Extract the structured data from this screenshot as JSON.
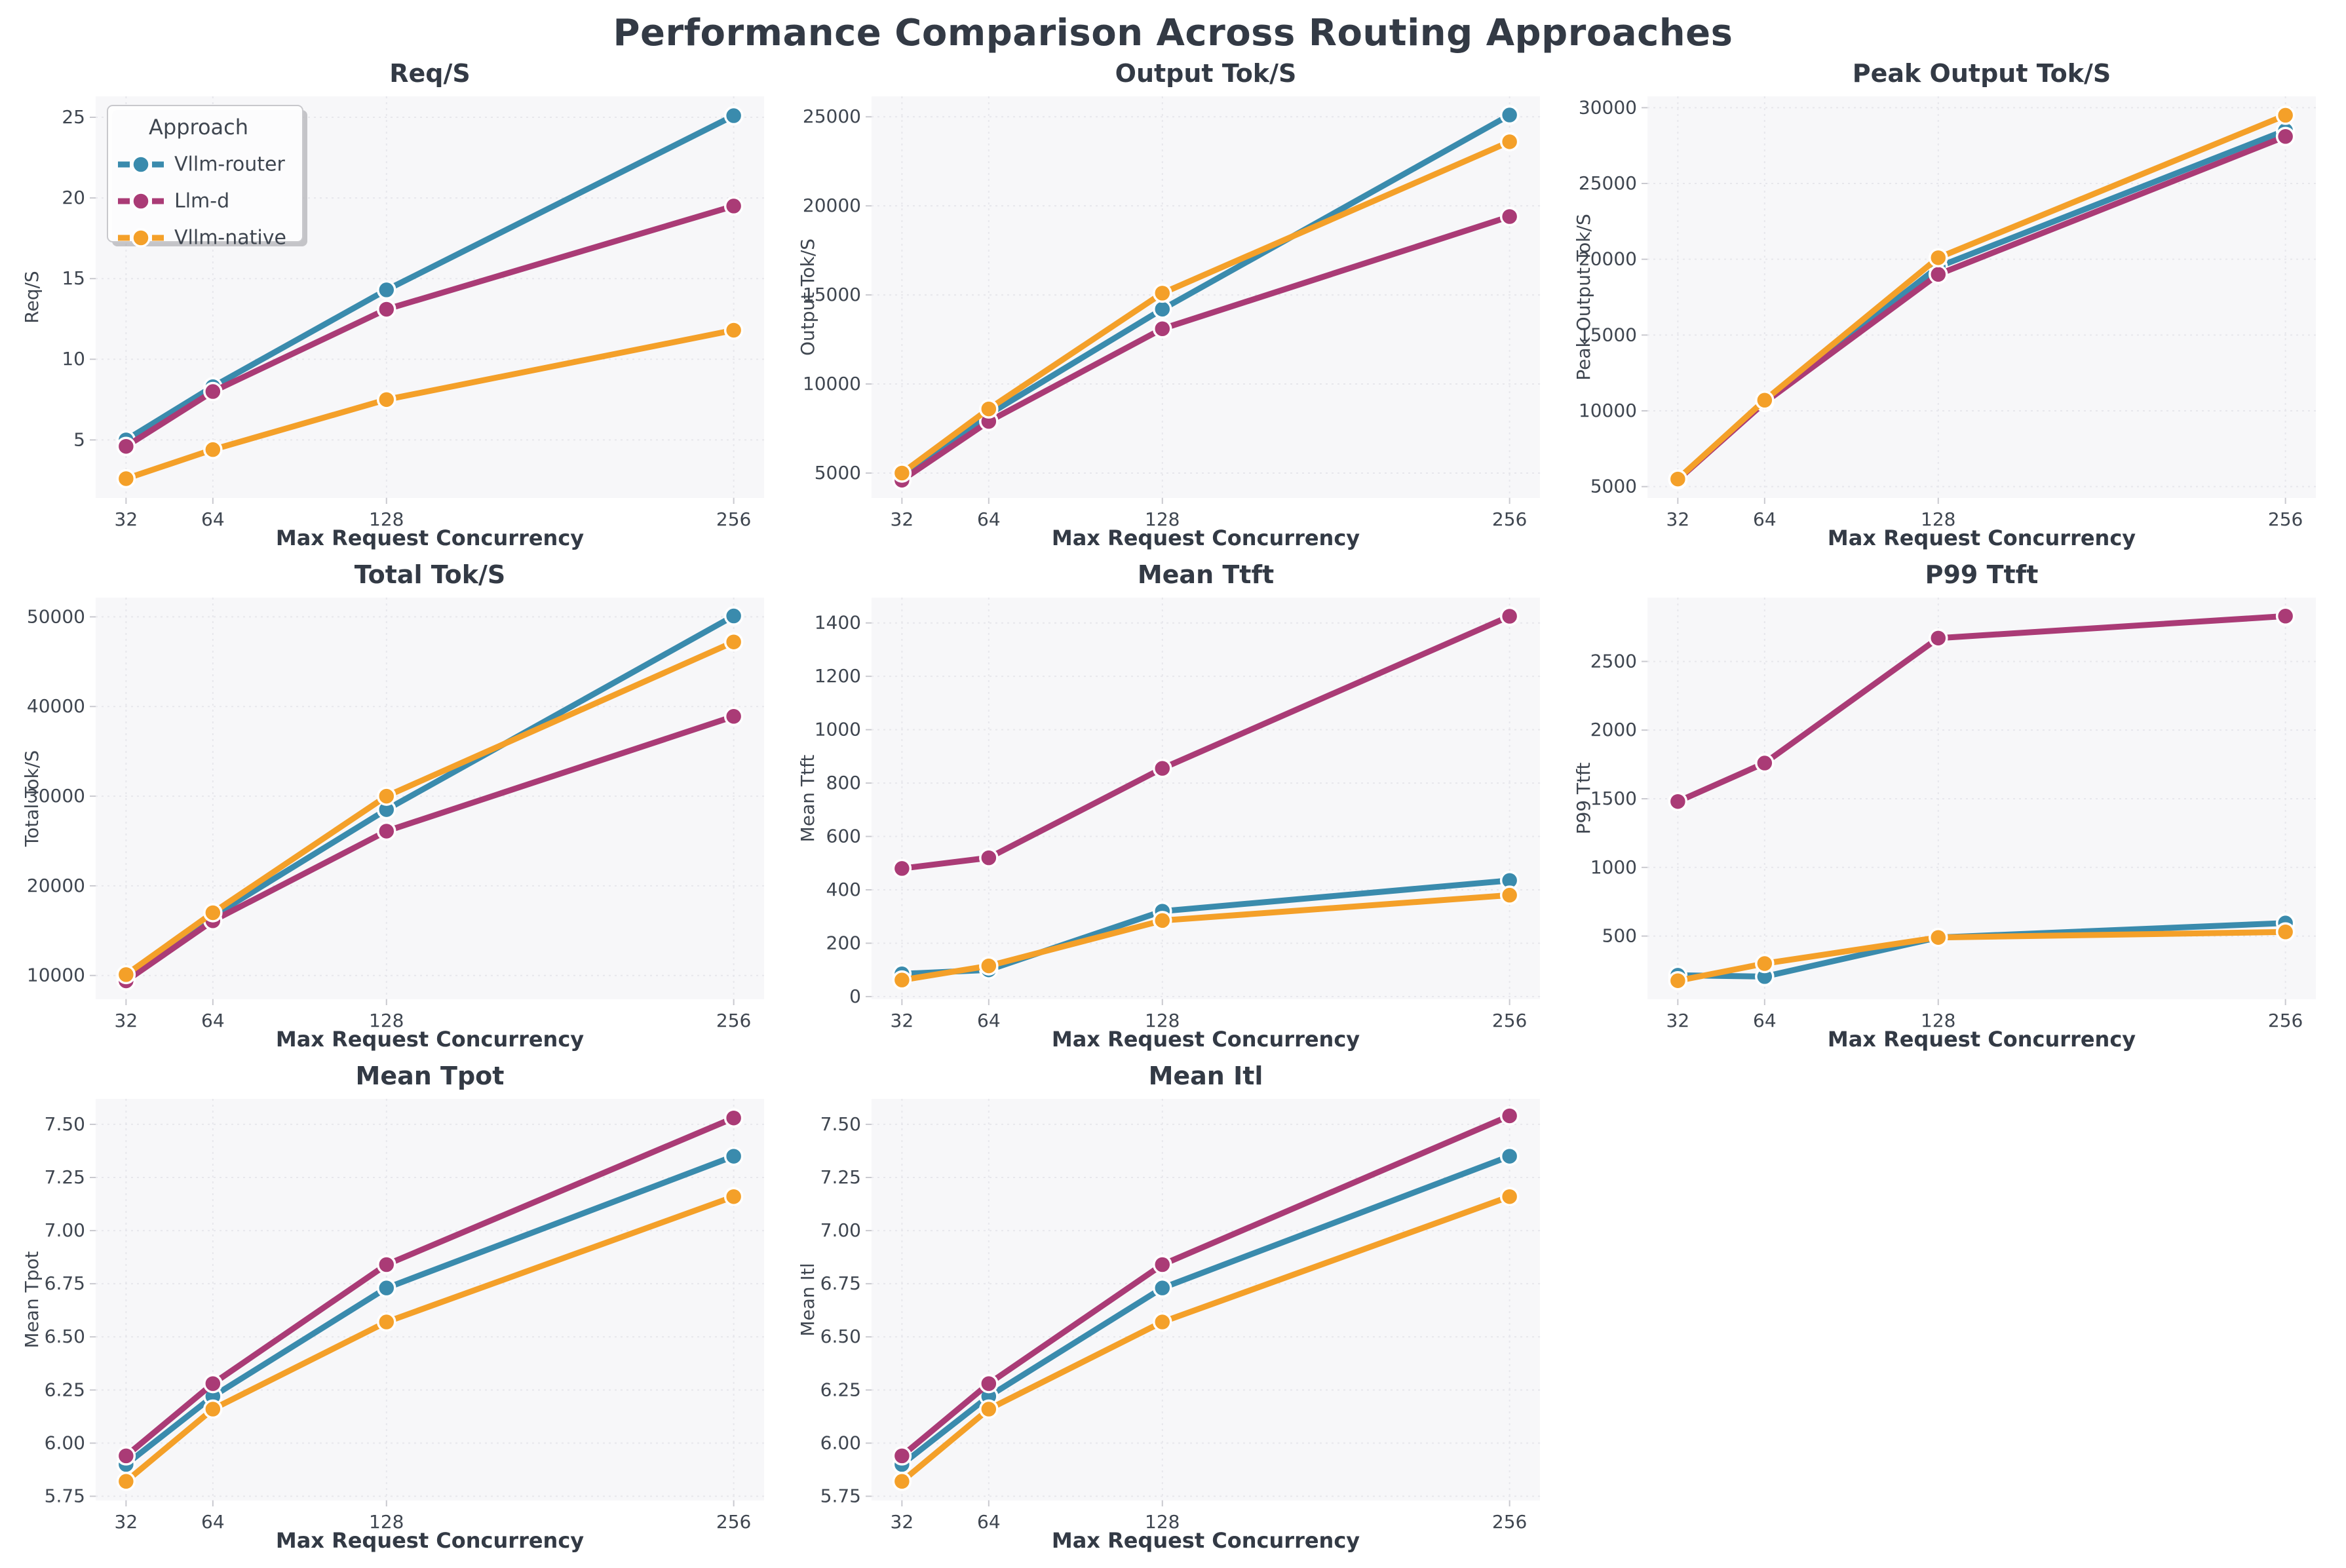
{
  "figure_title": "Performance Comparison Across Routing Approaches",
  "style": {
    "plot_bg": "#f7f7f9",
    "grid_color": "#e7e7ec",
    "tick_color": "#c9c9cf",
    "text_color": "#3f4650",
    "title_color": "#333a45",
    "legend_border": "#c8c8cc",
    "legend_bg": "#fefefe",
    "legend_shadow": "#9a9aa0"
  },
  "legend": {
    "title": "Approach",
    "entries": [
      {
        "name": "Vllm-router",
        "color": "#3a8bad"
      },
      {
        "name": "Llm-d",
        "color": "#aa3b76"
      },
      {
        "name": "Vllm-native",
        "color": "#f4a029"
      }
    ]
  },
  "shared_x": {
    "label": "Max Request Concurrency",
    "values": [
      32,
      64,
      128,
      256
    ],
    "tick_labels": [
      "32",
      "64",
      "128",
      "256"
    ],
    "xlim": [
      20.8,
      267.2
    ]
  },
  "chart_data": [
    {
      "id": "req-s",
      "type": "line",
      "title": "Req/S",
      "ylabel": "Req/S",
      "show_legend": true,
      "yticks": [
        5,
        10,
        15,
        20,
        25
      ],
      "ytick_labels": [
        "5",
        "10",
        "15",
        "20",
        "25"
      ],
      "ylim": [
        1.4,
        26.3
      ],
      "series": [
        {
          "name": "Vllm-router",
          "values": [
            5.0,
            8.3,
            14.3,
            25.1
          ]
        },
        {
          "name": "Llm-d",
          "values": [
            4.6,
            8.0,
            13.1,
            19.5
          ]
        },
        {
          "name": "Vllm-native",
          "values": [
            2.6,
            4.4,
            7.5,
            11.8
          ]
        }
      ]
    },
    {
      "id": "output-tok-s",
      "type": "line",
      "title": "Output Tok/S",
      "ylabel": "Output Tok/S",
      "show_legend": false,
      "yticks": [
        5000,
        10000,
        15000,
        20000,
        25000
      ],
      "ytick_labels": [
        "5000",
        "10000",
        "15000",
        "20000",
        "25000"
      ],
      "ylim": [
        3600,
        26150
      ],
      "series": [
        {
          "name": "Vllm-router",
          "values": [
            4950,
            8300,
            14200,
            25100
          ]
        },
        {
          "name": "Llm-d",
          "values": [
            4600,
            7900,
            13100,
            19400
          ]
        },
        {
          "name": "Vllm-native",
          "values": [
            5000,
            8600,
            15100,
            23600
          ]
        }
      ]
    },
    {
      "id": "peak-output-tok-s",
      "type": "line",
      "title": "Peak Output Tok/S",
      "ylabel": "Peak Output Tok/S",
      "show_legend": false,
      "yticks": [
        5000,
        10000,
        15000,
        20000,
        25000,
        30000
      ],
      "ytick_labels": [
        "5000",
        "10000",
        "15000",
        "20000",
        "25000",
        "30000"
      ],
      "ylim": [
        4250,
        30750
      ],
      "series": [
        {
          "name": "Vllm-router",
          "values": [
            5500,
            10600,
            19500,
            28500
          ]
        },
        {
          "name": "Llm-d",
          "values": [
            5450,
            10550,
            19000,
            28100
          ]
        },
        {
          "name": "Vllm-native",
          "values": [
            5500,
            10700,
            20100,
            29500
          ]
        }
      ]
    },
    {
      "id": "total-tok-s",
      "type": "line",
      "title": "Total Tok/S",
      "ylabel": "Total Tok/S",
      "show_legend": false,
      "yticks": [
        10000,
        20000,
        30000,
        40000,
        50000
      ],
      "ytick_labels": [
        "10000",
        "20000",
        "30000",
        "40000",
        "50000"
      ],
      "ylim": [
        7350,
        52150
      ],
      "series": [
        {
          "name": "Vllm-router",
          "values": [
            9900,
            16600,
            28500,
            50100
          ]
        },
        {
          "name": "Llm-d",
          "values": [
            9400,
            16100,
            26100,
            38900
          ]
        },
        {
          "name": "Vllm-native",
          "values": [
            10100,
            17000,
            30000,
            47200
          ]
        }
      ]
    },
    {
      "id": "mean-ttft",
      "type": "line",
      "title": "Mean Ttft",
      "ylabel": "Mean Ttft",
      "show_legend": false,
      "yticks": [
        0,
        200,
        400,
        600,
        800,
        1000,
        1200,
        1400
      ],
      "ytick_labels": [
        "0",
        "200",
        "400",
        "600",
        "800",
        "1000",
        "1200",
        "1400"
      ],
      "ylim": [
        -10,
        1495
      ],
      "series": [
        {
          "name": "Vllm-router",
          "values": [
            85,
            100,
            320,
            435
          ]
        },
        {
          "name": "Llm-d",
          "values": [
            480,
            520,
            855,
            1425
          ]
        },
        {
          "name": "Vllm-native",
          "values": [
            62,
            115,
            285,
            380
          ]
        }
      ]
    },
    {
      "id": "p99-ttft",
      "type": "line",
      "title": "P99 Ttft",
      "ylabel": "P99 Ttft",
      "show_legend": false,
      "yticks": [
        500,
        1000,
        1500,
        2000,
        2500
      ],
      "ytick_labels": [
        "500",
        "1000",
        "1500",
        "2000",
        "2500"
      ],
      "ylim": [
        40,
        2965
      ],
      "series": [
        {
          "name": "Vllm-router",
          "values": [
            215,
            205,
            490,
            595
          ]
        },
        {
          "name": "Llm-d",
          "values": [
            1480,
            1760,
            2670,
            2830
          ]
        },
        {
          "name": "Vllm-native",
          "values": [
            175,
            300,
            490,
            530
          ]
        }
      ]
    },
    {
      "id": "mean-tpot",
      "type": "line",
      "title": "Mean Tpot",
      "ylabel": "Mean Tpot",
      "show_legend": false,
      "yticks": [
        5.75,
        6.0,
        6.25,
        6.5,
        6.75,
        7.0,
        7.25,
        7.5
      ],
      "ytick_labels": [
        "5.75",
        "6.00",
        "6.25",
        "6.50",
        "6.75",
        "7.00",
        "7.25",
        "7.50"
      ],
      "ylim": [
        5.73,
        7.62
      ],
      "series": [
        {
          "name": "Vllm-router",
          "values": [
            5.9,
            6.22,
            6.73,
            7.35
          ]
        },
        {
          "name": "Llm-d",
          "values": [
            5.94,
            6.28,
            6.84,
            7.53
          ]
        },
        {
          "name": "Vllm-native",
          "values": [
            5.82,
            6.16,
            6.57,
            7.16
          ]
        }
      ]
    },
    {
      "id": "mean-itl",
      "type": "line",
      "title": "Mean Itl",
      "ylabel": "Mean Itl",
      "show_legend": false,
      "yticks": [
        5.75,
        6.0,
        6.25,
        6.5,
        6.75,
        7.0,
        7.25,
        7.5
      ],
      "ytick_labels": [
        "5.75",
        "6.00",
        "6.25",
        "6.50",
        "6.75",
        "7.00",
        "7.25",
        "7.50"
      ],
      "ylim": [
        5.73,
        7.62
      ],
      "series": [
        {
          "name": "Vllm-router",
          "values": [
            5.9,
            6.22,
            6.73,
            7.35
          ]
        },
        {
          "name": "Llm-d",
          "values": [
            5.94,
            6.28,
            6.84,
            7.54
          ]
        },
        {
          "name": "Vllm-native",
          "values": [
            5.82,
            6.16,
            6.57,
            7.16
          ]
        }
      ]
    }
  ]
}
